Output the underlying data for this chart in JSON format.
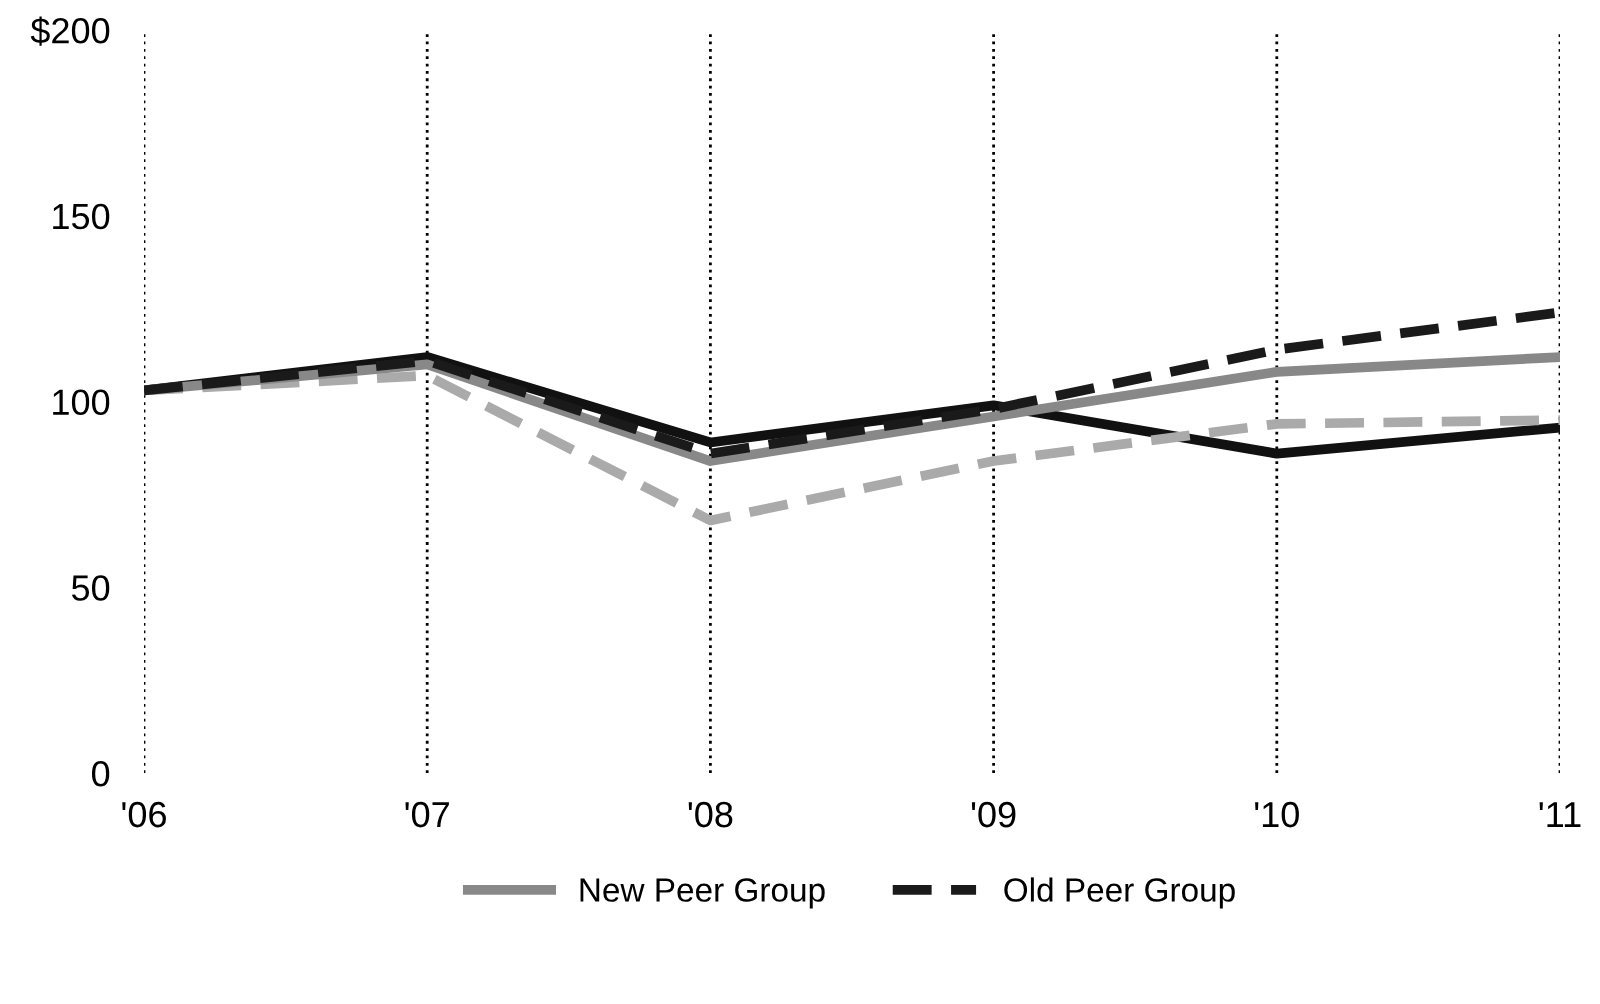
{
  "chart_data": {
    "type": "line",
    "categories": [
      "'06",
      "'07",
      "'08",
      "'09",
      "'10",
      "'11"
    ],
    "series": [
      {
        "color": "#111111",
        "values": [
          103,
          112,
          89,
          99,
          86,
          93
        ],
        "line_style": "solid"
      },
      {
        "color": "#aaaaaa",
        "values": [
          103,
          107,
          68,
          84,
          94,
          95
        ],
        "line_style": "dashed"
      },
      {
        "name": "New Peer Group",
        "color": "#888888",
        "values": [
          103,
          110,
          84,
          96,
          108,
          112
        ],
        "line_style": "solid"
      },
      {
        "name": "Old Peer Group",
        "color": "#1a1a1a",
        "values": [
          103,
          111,
          86,
          98,
          114,
          124
        ],
        "line_style": "dashed"
      }
    ],
    "ylim": [
      0,
      200
    ],
    "yticks": [
      0,
      50,
      100,
      150,
      {
        "value": 200,
        "label": "$200"
      }
    ],
    "grid": "x",
    "legend": "bottom"
  }
}
